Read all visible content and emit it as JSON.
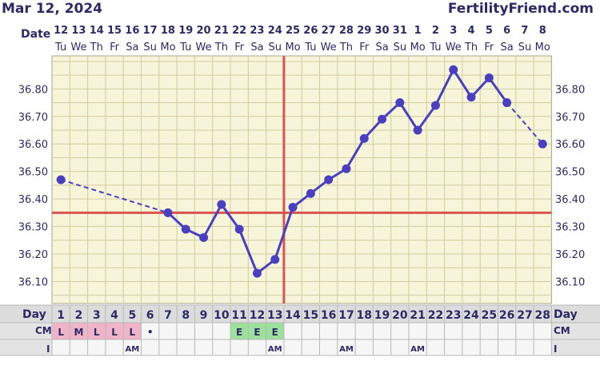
{
  "header": {
    "date": "Mar 12, 2024",
    "brand": "FertilityFriend.com"
  },
  "row_labels": {
    "date": "Date",
    "day": "Day",
    "cm": "CM",
    "i": "I"
  },
  "colors": {
    "background": "#ffffff",
    "plot_bg": "#f7f5d9",
    "grid": "#cfcca0",
    "line": "#4a3fbf",
    "coverline": "#d9534f",
    "ovulation_line": "#d9534f",
    "text": "#2c2a66",
    "day_row_bg": "#dcdcdc",
    "cm_pink": "#f0b4c8",
    "cm_green": "#9ce09c"
  },
  "chart_data": {
    "type": "line",
    "title": "",
    "xlabel": "",
    "ylabel": "",
    "ylim": [
      36.02,
      36.92
    ],
    "y_ticks": [
      "36.10",
      "36.20",
      "36.30",
      "36.40",
      "36.50",
      "36.60",
      "36.70",
      "36.80"
    ],
    "y_tick_values": [
      36.1,
      36.2,
      36.3,
      36.4,
      36.5,
      36.6,
      36.7,
      36.8
    ],
    "dates": [
      "12",
      "13",
      "14",
      "15",
      "16",
      "17",
      "18",
      "19",
      "20",
      "21",
      "22",
      "23",
      "24",
      "25",
      "26",
      "27",
      "28",
      "29",
      "30",
      "31",
      "1",
      "2",
      "3",
      "4",
      "5",
      "6",
      "7",
      "8"
    ],
    "weekdays": [
      "Tu",
      "We",
      "Th",
      "Fr",
      "Sa",
      "Su",
      "Mo",
      "Tu",
      "We",
      "Th",
      "Fr",
      "Sa",
      "Su",
      "Mo",
      "Tu",
      "We",
      "Th",
      "Fr",
      "Sa",
      "Su",
      "Mo",
      "Tu",
      "We",
      "Th",
      "Fr",
      "Sa",
      "Su",
      "Mo"
    ],
    "cycle_days": [
      "1",
      "2",
      "3",
      "4",
      "5",
      "6",
      "7",
      "8",
      "9",
      "10",
      "11",
      "12",
      "13",
      "14",
      "15",
      "16",
      "17",
      "18",
      "19",
      "20",
      "21",
      "22",
      "23",
      "24",
      "25",
      "26",
      "27",
      "28"
    ],
    "temperatures": [
      36.47,
      null,
      null,
      null,
      null,
      null,
      36.35,
      36.29,
      36.26,
      36.38,
      36.29,
      36.13,
      36.18,
      36.37,
      36.42,
      36.47,
      36.51,
      36.62,
      36.69,
      36.75,
      36.65,
      36.74,
      36.87,
      36.77,
      36.84,
      36.75,
      null,
      36.6
    ],
    "coverline": 36.35,
    "ovulation_day": 13,
    "cm": [
      "L",
      "M",
      "L",
      "L",
      "L",
      "•",
      "",
      "",
      "",
      "",
      "E",
      "E",
      "E",
      "",
      "",
      "",
      "",
      "",
      "",
      "",
      "",
      "",
      "",
      "",
      "",
      "",
      "",
      ""
    ],
    "cm_colors": [
      "pink",
      "pink",
      "pink",
      "pink",
      "pink",
      "",
      "",
      "",
      "",
      "",
      "green",
      "green",
      "green",
      "",
      "",
      "",
      "",
      "",
      "",
      "",
      "",
      "",
      "",
      "",
      "",
      "",
      "",
      ""
    ],
    "intercourse": [
      "",
      "",
      "",
      "",
      "AM",
      "",
      "",
      "",
      "",
      "",
      "",
      "",
      "AM",
      "",
      "",
      "",
      "AM",
      "",
      "",
      "",
      "AM",
      "",
      "",
      "",
      "",
      "",
      "",
      ""
    ]
  }
}
